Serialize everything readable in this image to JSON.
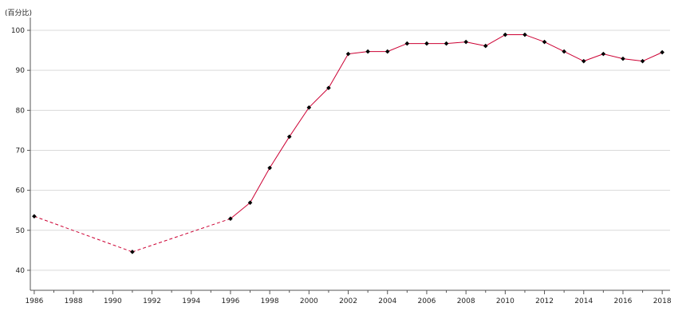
{
  "chart_data": {
    "type": "line",
    "title": "",
    "ylabel": "(百分比)",
    "xlabel": "",
    "xlim": [
      1985.8,
      2018.4
    ],
    "ylim": [
      35,
      102
    ],
    "y_ticks": [
      40,
      50,
      60,
      70,
      80,
      90,
      100
    ],
    "x_ticks": [
      1986,
      1988,
      1990,
      1992,
      1994,
      1996,
      1998,
      2000,
      2002,
      2004,
      2006,
      2008,
      2010,
      2012,
      2014,
      2016,
      2018
    ],
    "grid": "horizontal",
    "line_color": "#cc0033",
    "marker_color": "#000000",
    "series": [
      {
        "x": [
          1986,
          1991,
          1996,
          1997,
          1998,
          1999,
          2000,
          2001,
          2002,
          2003,
          2004,
          2005,
          2006,
          2007,
          2008,
          2009,
          2010,
          2011,
          2012,
          2013,
          2014,
          2015,
          2016,
          2017,
          2018
        ],
        "values": [
          53.5,
          44.6,
          52.9,
          56.9,
          65.6,
          73.4,
          80.7,
          85.6,
          94.1,
          94.7,
          94.7,
          96.7,
          96.7,
          96.7,
          97.1,
          96.1,
          98.9,
          98.9,
          97.1,
          94.7,
          92.3,
          94.1,
          92.9,
          92.3,
          94.5
        ],
        "dashed_segments_until": 1996
      }
    ]
  }
}
